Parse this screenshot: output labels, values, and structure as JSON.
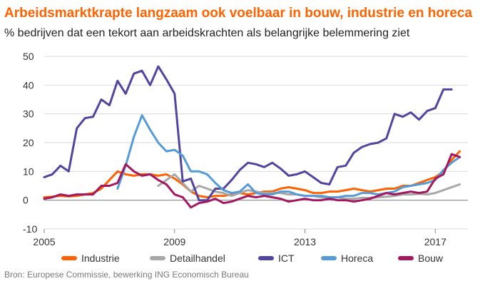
{
  "header": {
    "title": "Arbeidsmarktkrapte langzaam ook voelbaar in bouw, industrie en horeca",
    "subtitle": "% bedrijven dat een tekort aan arbeidskrachten als belangrijke belemmering ziet"
  },
  "footer": {
    "source": "Bron: Europese Commissie, bewerking ING Economisch Bureau"
  },
  "chart_data": {
    "type": "line",
    "xlim": [
      2005,
      2018.0
    ],
    "ylim": [
      -10,
      50
    ],
    "x_ticks": [
      2005,
      2009,
      2013,
      2017
    ],
    "x_tick_labels": [
      "2005",
      "2009",
      "2013",
      "2017"
    ],
    "y_ticks": [
      -10,
      0,
      10,
      20,
      30,
      40,
      50
    ],
    "y_tick_labels": [
      "-10",
      "0",
      "10",
      "20",
      "30",
      "40",
      "50"
    ],
    "grid": "horizontal",
    "legend_position": "bottom",
    "series": [
      {
        "name": "Industrie",
        "color": "#ff6200",
        "x": [
          2005.0,
          2005.25,
          2005.5,
          2005.75,
          2006.0,
          2006.25,
          2006.5,
          2006.75,
          2007.0,
          2007.25,
          2007.5,
          2007.75,
          2008.0,
          2008.25,
          2008.5,
          2008.75,
          2009.0,
          2009.25,
          2009.5,
          2009.75,
          2010.0,
          2010.25,
          2010.5,
          2010.75,
          2011.0,
          2011.25,
          2011.5,
          2011.75,
          2012.0,
          2012.25,
          2012.5,
          2012.75,
          2013.0,
          2013.25,
          2013.5,
          2013.75,
          2014.0,
          2014.25,
          2014.5,
          2014.75,
          2015.0,
          2015.25,
          2015.5,
          2015.75,
          2016.0,
          2016.25,
          2016.5,
          2016.75,
          2017.0,
          2017.25,
          2017.5,
          2017.75
        ],
        "y": [
          1.0,
          1.2,
          1.5,
          1.3,
          1.5,
          2.0,
          2.5,
          4.0,
          7.0,
          10.0,
          9.0,
          8.5,
          9.0,
          9.0,
          8.5,
          9.0,
          7.5,
          5.5,
          3.0,
          1.5,
          1.0,
          1.5,
          1.5,
          2.0,
          2.5,
          2.0,
          2.5,
          3.0,
          3.0,
          4.0,
          4.5,
          4.0,
          3.5,
          2.5,
          2.5,
          3.0,
          3.0,
          3.5,
          4.0,
          3.5,
          3.0,
          3.5,
          4.0,
          4.0,
          5.0,
          5.0,
          6.0,
          7.0,
          8.0,
          10.0,
          14.0,
          17.0
        ]
      },
      {
        "name": "Detailhandel",
        "color": "#a8a8a8",
        "x": [
          2008.5,
          2008.75,
          2009.0,
          2009.25,
          2009.5,
          2009.75,
          2010.0,
          2010.25,
          2010.5,
          2010.75,
          2011.0,
          2011.25,
          2011.5,
          2011.75,
          2012.0,
          2012.25,
          2012.5,
          2012.75,
          2013.0,
          2013.25,
          2013.5,
          2013.75,
          2014.0,
          2014.25,
          2014.5,
          2014.75,
          2015.0,
          2015.25,
          2015.5,
          2015.75,
          2016.0,
          2016.25,
          2016.5,
          2016.75,
          2017.0,
          2017.25,
          2017.5,
          2017.75
        ],
        "y": [
          5.0,
          7.0,
          9.0,
          6.0,
          3.0,
          5.0,
          4.0,
          3.0,
          2.5,
          1.5,
          2.5,
          3.5,
          3.0,
          2.5,
          2.5,
          2.5,
          2.0,
          2.0,
          1.5,
          1.5,
          1.0,
          1.0,
          1.0,
          0.5,
          0.5,
          0.8,
          0.8,
          1.0,
          1.2,
          1.5,
          2.0,
          2.0,
          2.2,
          2.0,
          2.5,
          3.5,
          4.5,
          5.5
        ]
      },
      {
        "name": "ICT",
        "color": "#52459f",
        "x": [
          2005.0,
          2005.25,
          2005.5,
          2005.75,
          2006.0,
          2006.25,
          2006.5,
          2006.75,
          2007.0,
          2007.25,
          2007.5,
          2007.75,
          2008.0,
          2008.25,
          2008.5,
          2008.75,
          2009.0,
          2009.25,
          2009.5,
          2009.75,
          2010.0,
          2010.25,
          2010.5,
          2010.75,
          2011.0,
          2011.25,
          2011.5,
          2011.75,
          2012.0,
          2012.25,
          2012.5,
          2012.75,
          2013.0,
          2013.25,
          2013.5,
          2013.75,
          2014.0,
          2014.25,
          2014.5,
          2014.75,
          2015.0,
          2015.25,
          2015.5,
          2015.75,
          2016.0,
          2016.25,
          2016.5,
          2016.75,
          2017.0,
          2017.25,
          2017.5
        ],
        "y": [
          8.0,
          9.0,
          12.0,
          10.0,
          25.0,
          28.5,
          29.0,
          35.0,
          33.0,
          41.5,
          37.0,
          44.0,
          45.0,
          40.0,
          46.5,
          42.0,
          37.0,
          6.5,
          7.5,
          0.0,
          0.0,
          4.0,
          4.0,
          7.0,
          10.5,
          13.0,
          12.5,
          11.5,
          13.0,
          11.0,
          8.5,
          9.0,
          10.0,
          8.0,
          6.0,
          5.5,
          11.5,
          12.0,
          16.5,
          18.5,
          19.5,
          20.0,
          21.5,
          30.0,
          29.0,
          30.5,
          28.0,
          31.0,
          32.0,
          38.5,
          38.5
        ]
      },
      {
        "name": "Horeca",
        "color": "#559bd7",
        "x": [
          2007.25,
          2007.5,
          2007.75,
          2008.0,
          2008.25,
          2008.5,
          2008.75,
          2009.0,
          2009.25,
          2009.5,
          2009.75,
          2010.0,
          2010.25,
          2010.5,
          2010.75,
          2011.0,
          2011.25,
          2011.5,
          2011.75,
          2012.0,
          2012.25,
          2012.5,
          2012.75,
          2013.0,
          2013.25,
          2013.5,
          2013.75,
          2014.0,
          2014.25,
          2014.5,
          2014.75,
          2015.0,
          2015.25,
          2015.5,
          2015.75,
          2016.0,
          2016.25,
          2016.5,
          2016.75,
          2017.0,
          2017.25,
          2017.5,
          2017.75
        ],
        "y": [
          4.0,
          12.0,
          22.0,
          29.5,
          24.5,
          20.0,
          17.0,
          17.5,
          15.5,
          10.0,
          10.0,
          9.0,
          6.0,
          3.5,
          2.5,
          3.0,
          5.5,
          2.5,
          2.0,
          2.0,
          3.0,
          3.0,
          2.0,
          1.5,
          1.5,
          1.5,
          1.0,
          1.0,
          1.5,
          1.5,
          2.5,
          2.5,
          2.0,
          2.5,
          3.0,
          4.5,
          5.0,
          5.5,
          6.0,
          7.0,
          10.5,
          13.0,
          15.0
        ]
      },
      {
        "name": "Bouw",
        "color": "#a3185f",
        "x": [
          2005.0,
          2005.25,
          2005.5,
          2005.75,
          2006.0,
          2006.25,
          2006.5,
          2006.75,
          2007.0,
          2007.25,
          2007.5,
          2007.75,
          2008.0,
          2008.25,
          2008.5,
          2008.75,
          2009.0,
          2009.25,
          2009.5,
          2009.75,
          2010.0,
          2010.25,
          2010.5,
          2010.75,
          2011.0,
          2011.25,
          2011.5,
          2011.75,
          2012.0,
          2012.25,
          2012.5,
          2012.75,
          2013.0,
          2013.25,
          2013.5,
          2013.75,
          2014.0,
          2014.25,
          2014.5,
          2014.75,
          2015.0,
          2015.25,
          2015.5,
          2015.75,
          2016.0,
          2016.25,
          2016.5,
          2016.75,
          2017.0,
          2017.25,
          2017.5,
          2017.75
        ],
        "y": [
          0.5,
          1.0,
          2.0,
          1.5,
          2.0,
          2.0,
          2.0,
          5.0,
          5.0,
          6.0,
          12.5,
          10.0,
          8.5,
          9.0,
          7.0,
          5.5,
          2.0,
          1.0,
          -2.5,
          -1.0,
          -0.5,
          0.5,
          -1.0,
          -0.5,
          0.5,
          1.5,
          1.0,
          1.5,
          1.0,
          0.5,
          -0.5,
          0.0,
          0.5,
          0.0,
          0.0,
          0.5,
          0.0,
          0.0,
          -0.5,
          0.0,
          0.5,
          1.5,
          2.5,
          2.0,
          2.5,
          3.0,
          2.5,
          3.0,
          7.5,
          9.0,
          16.0,
          15.0
        ]
      }
    ]
  }
}
